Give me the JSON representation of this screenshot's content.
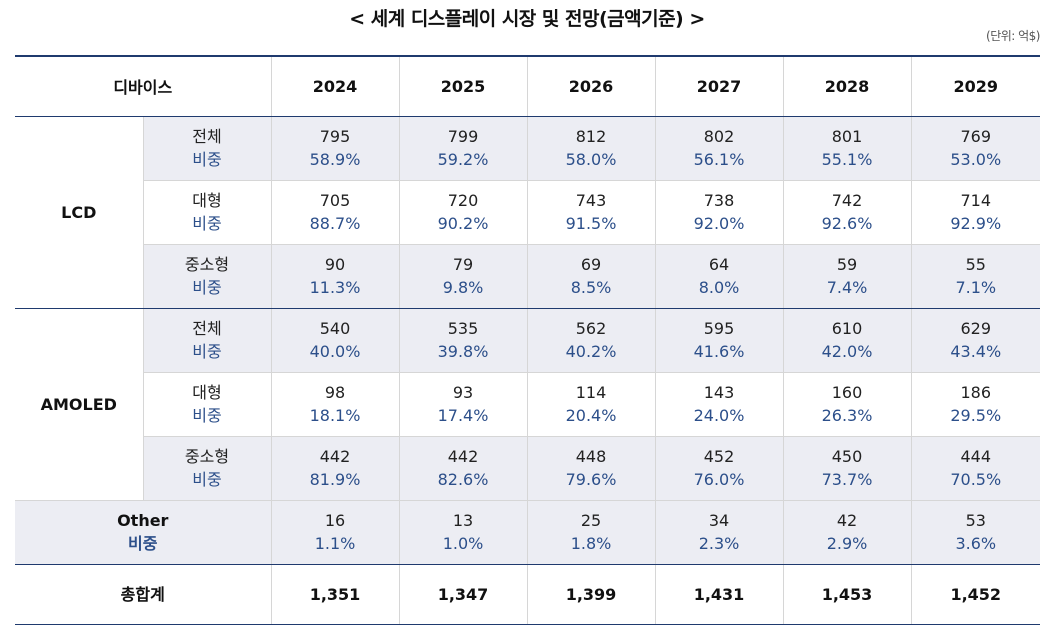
{
  "title": "< 세계 디스플레이 시장 및 전망(금액기준) >",
  "unit": "(단위: 억$)",
  "header": {
    "device": "디바이스",
    "years": [
      "2024",
      "2025",
      "2026",
      "2027",
      "2028",
      "2029"
    ]
  },
  "share_label": "비중",
  "groups": {
    "lcd": {
      "name": "LCD",
      "rows": [
        {
          "label": "전체",
          "values": [
            "795",
            "799",
            "812",
            "802",
            "801",
            "769"
          ],
          "shares": [
            "58.9%",
            "59.2%",
            "58.0%",
            "56.1%",
            "55.1%",
            "53.0%"
          ]
        },
        {
          "label": "대형",
          "values": [
            "705",
            "720",
            "743",
            "738",
            "742",
            "714"
          ],
          "shares": [
            "88.7%",
            "90.2%",
            "91.5%",
            "92.0%",
            "92.6%",
            "92.9%"
          ]
        },
        {
          "label": "중소형",
          "values": [
            "90",
            "79",
            "69",
            "64",
            "59",
            "55"
          ],
          "shares": [
            "11.3%",
            "9.8%",
            "8.5%",
            "8.0%",
            "7.4%",
            "7.1%"
          ]
        }
      ]
    },
    "amoled": {
      "name": "AMOLED",
      "rows": [
        {
          "label": "전체",
          "values": [
            "540",
            "535",
            "562",
            "595",
            "610",
            "629"
          ],
          "shares": [
            "40.0%",
            "39.8%",
            "40.2%",
            "41.6%",
            "42.0%",
            "43.4%"
          ]
        },
        {
          "label": "대형",
          "values": [
            "98",
            "93",
            "114",
            "143",
            "160",
            "186"
          ],
          "shares": [
            "18.1%",
            "17.4%",
            "20.4%",
            "24.0%",
            "26.3%",
            "29.5%"
          ]
        },
        {
          "label": "중소형",
          "values": [
            "442",
            "442",
            "448",
            "452",
            "450",
            "444"
          ],
          "shares": [
            "81.9%",
            "82.6%",
            "79.6%",
            "76.0%",
            "73.7%",
            "70.5%"
          ]
        }
      ]
    },
    "other": {
      "name": "Other",
      "values": [
        "16",
        "13",
        "25",
        "34",
        "42",
        "53"
      ],
      "shares": [
        "1.1%",
        "1.0%",
        "1.8%",
        "2.3%",
        "2.9%",
        "3.6%"
      ]
    }
  },
  "total": {
    "label": "총합계",
    "values": [
      "1,351",
      "1,347",
      "1,399",
      "1,431",
      "1,453",
      "1,452"
    ]
  }
}
